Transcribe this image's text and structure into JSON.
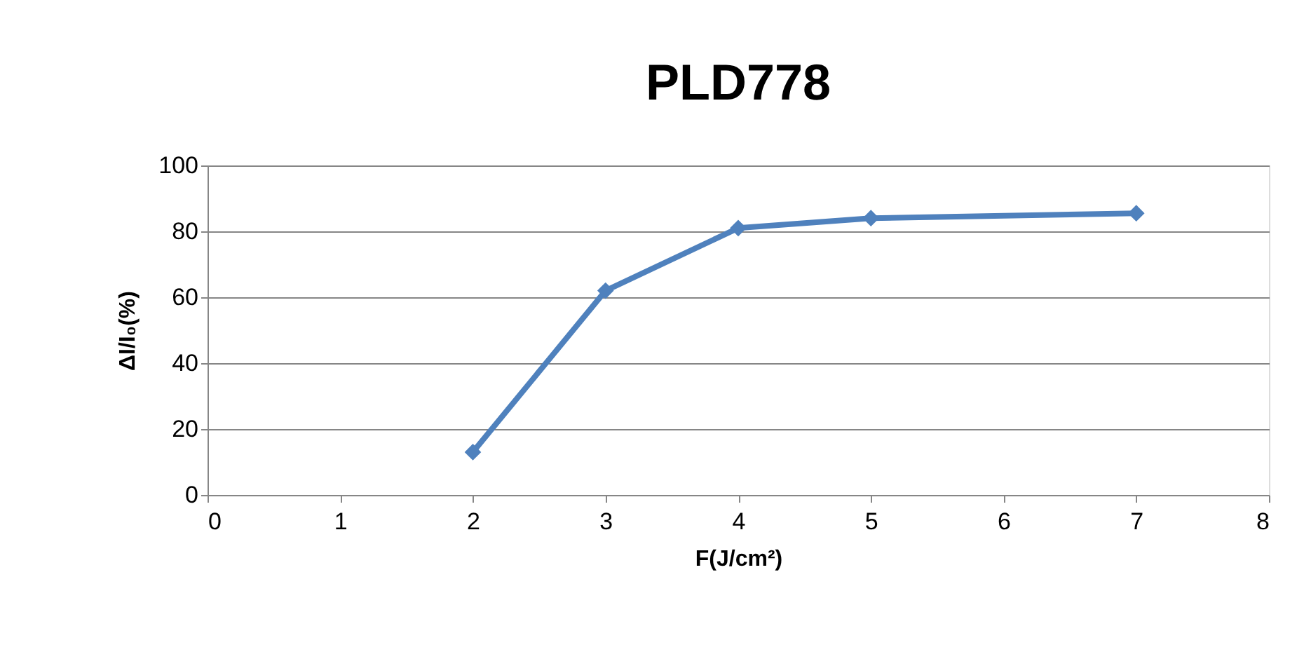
{
  "chart_data": {
    "type": "line",
    "title": "PLD778",
    "xlabel": "F(J/cm²)",
    "ylabel": "ΔI/I₀(%)",
    "x": [
      2,
      3,
      4,
      5,
      7
    ],
    "series": [
      {
        "color": "#4f81bd",
        "values": [
          13,
          62,
          81,
          84,
          85.5
        ]
      }
    ],
    "xlim": [
      0,
      8
    ],
    "xticks": [
      0,
      1,
      2,
      3,
      4,
      5,
      6,
      7,
      8
    ],
    "ylim": [
      0,
      100
    ],
    "yticks": [
      0,
      20,
      40,
      60,
      80,
      100
    ],
    "grid": "y",
    "marker": "diamond",
    "line_style": "solid"
  }
}
